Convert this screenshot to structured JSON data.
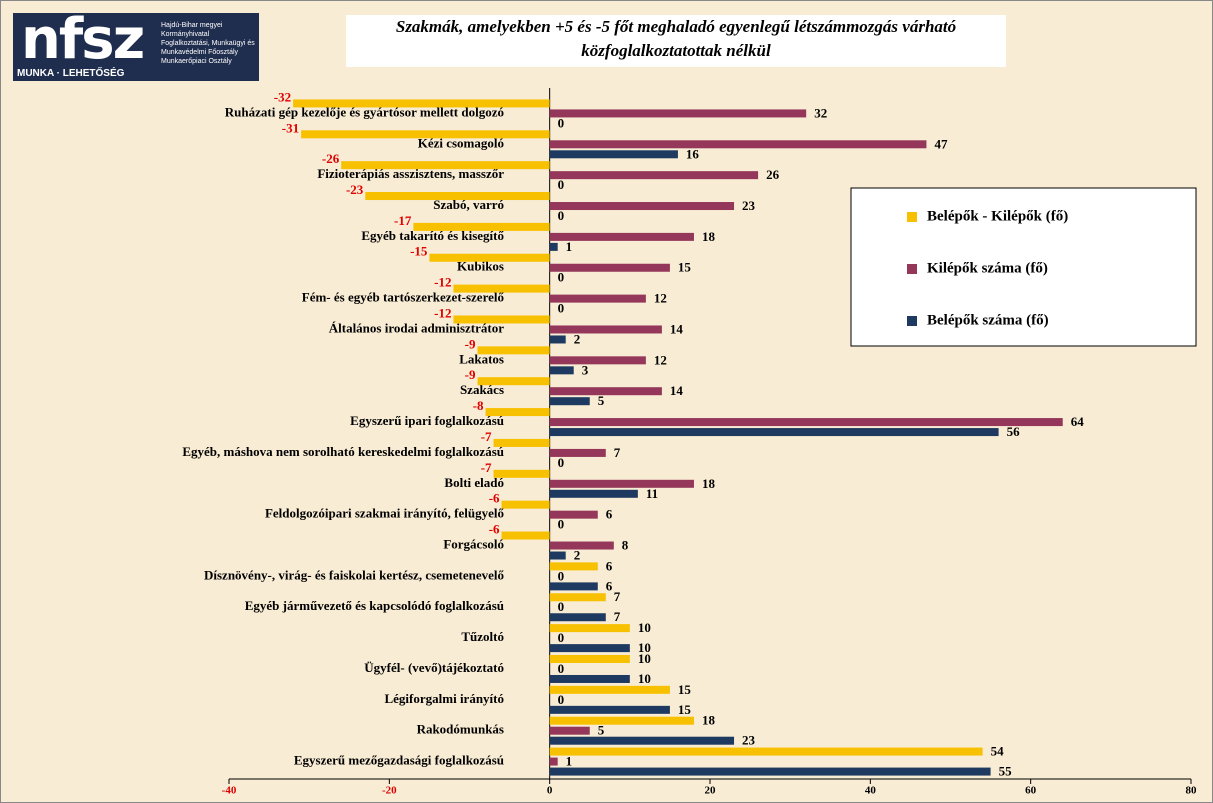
{
  "logo": {
    "text": "nfsz",
    "lines": [
      "Hajdú-Bihar megyei Kormányhivatal",
      "Foglalkoztatási, Munkaügyi és",
      "Munkavédelmi Főosztály",
      "Munkaerőpiaci Osztály"
    ],
    "tagline": "MUNKA · LEHETŐSÉG"
  },
  "chart_data": {
    "type": "bar",
    "orientation": "horizontal",
    "title": "Szakmák, amelyekben +5 és -5 főt meghaladó egyenlegű létszámmozgás várható közfoglalkoztatottak nélkül",
    "categories": [
      "Ruházati gép kezelője és gyártósor mellett dolgozó",
      "Kézi csomagoló",
      "Fizioterápiás asszisztens, masszőr",
      "Szabó, varró",
      "Egyéb takarító és kisegítő",
      "Kubikos",
      "Fém- és egyéb tartószerkezet-szerelő",
      "Általános irodai adminisztrátor",
      "Lakatos",
      "Szakács",
      "Egyszerű ipari foglalkozású",
      "Egyéb, máshova nem sorolható kereskedelmi foglalkozású",
      "Bolti eladó",
      "Feldolgozóipari szakmai irányító, felügyelő",
      "Forgácsoló",
      "Dísznövény-, virág- és faiskolai kertész, csemetenevelő",
      "Egyéb járművezető és kapcsolódó foglalkozású",
      "Tűzoltó",
      "Ügyfél- (vevő)tájékoztató",
      "Légiforgalmi irányító",
      "Rakodómunkás",
      "Egyszerű mezőgazdasági foglalkozású"
    ],
    "series": [
      {
        "name": "Belépők - Kilépők (fő)",
        "color": "#f7c000",
        "values": [
          -32,
          -31,
          -26,
          -23,
          -17,
          -15,
          -12,
          -12,
          -9,
          -9,
          -8,
          -7,
          -7,
          -6,
          -6,
          6,
          7,
          10,
          10,
          15,
          18,
          54
        ]
      },
      {
        "name": "Kilépők száma (fő)",
        "color": "#94375a",
        "values": [
          32,
          47,
          26,
          23,
          18,
          15,
          12,
          14,
          12,
          14,
          64,
          7,
          18,
          6,
          8,
          0,
          0,
          0,
          0,
          0,
          5,
          1
        ]
      },
      {
        "name": "Belépők száma (fő)",
        "color": "#1f3a60",
        "values": [
          0,
          16,
          0,
          0,
          1,
          0,
          0,
          2,
          3,
          5,
          56,
          0,
          11,
          0,
          2,
          6,
          7,
          10,
          10,
          15,
          23,
          55
        ]
      }
    ],
    "xlim": [
      -40,
      80
    ],
    "xticks": [
      -40,
      -20,
      0,
      20,
      40,
      60,
      80
    ],
    "negative_color": "#e00000"
  }
}
